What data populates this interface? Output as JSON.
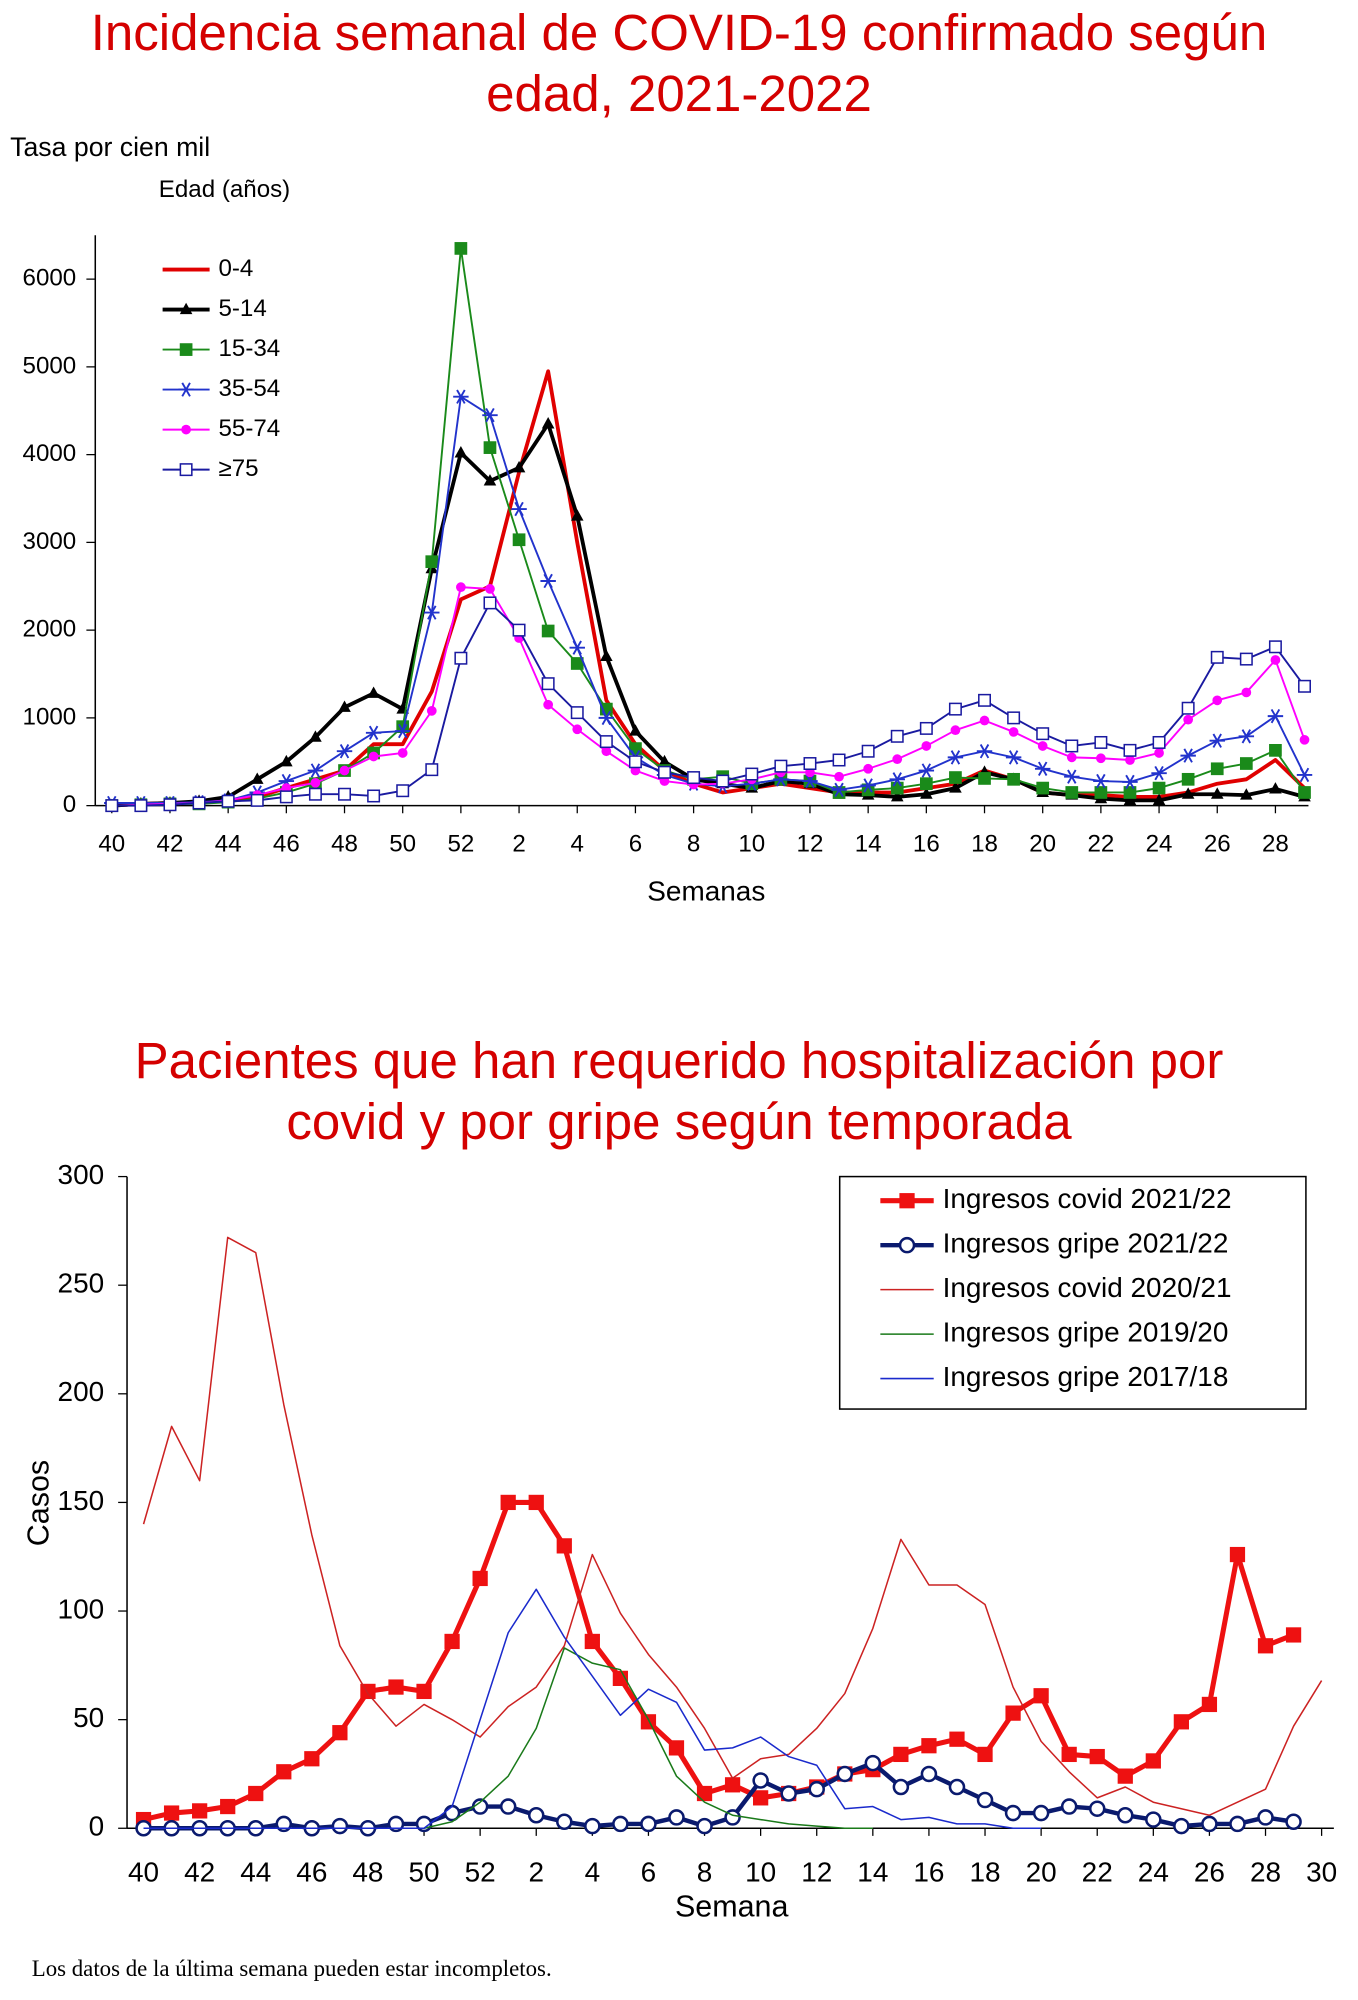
{
  "chart_data": [
    {
      "type": "line",
      "title": "Incidencia semanal de COVID-19 confirmado según edad, 2021-2022",
      "ylabel": "Tasa por cien mil",
      "xlabel": "Semanas",
      "legend_title": "Edad (años)",
      "legend": "upper left",
      "legend_frame": false,
      "categories": [
        "40",
        null,
        "42",
        null,
        "44",
        null,
        "46",
        null,
        "48",
        null,
        "50",
        null,
        "52",
        null,
        "2",
        null,
        "4",
        null,
        "6",
        null,
        "8",
        null,
        "10",
        null,
        "12",
        null,
        "14",
        null,
        "16",
        null,
        "18",
        null,
        "20",
        null,
        "22",
        null,
        "24",
        null,
        "26",
        null,
        "28",
        null
      ],
      "ylim": [
        0,
        6500
      ],
      "yticks": [
        0,
        1000,
        2000,
        3000,
        4000,
        5000,
        6000
      ],
      "series": [
        {
          "name": "0-4",
          "color": "#e00000",
          "marker": "none",
          "line_width": 3,
          "values": [
            0,
            20,
            30,
            40,
            60,
            100,
            200,
            300,
            400,
            700,
            700,
            1300,
            2350,
            2500,
            3800,
            4950,
            3000,
            1200,
            700,
            400,
            250,
            150,
            200,
            250,
            200,
            150,
            150,
            150,
            200,
            250,
            400,
            300,
            150,
            120,
            120,
            100,
            100,
            150,
            250,
            300,
            520,
            200
          ]
        },
        {
          "name": "5-14",
          "color": "#000000",
          "marker": "triangle",
          "line_width": 3,
          "values": [
            0,
            20,
            30,
            50,
            100,
            300,
            500,
            780,
            1120,
            1280,
            1100,
            2700,
            4020,
            3700,
            3850,
            4350,
            3300,
            1700,
            850,
            500,
            300,
            250,
            200,
            280,
            250,
            130,
            120,
            100,
            130,
            200,
            380,
            300,
            150,
            120,
            80,
            60,
            60,
            130,
            130,
            120,
            190,
            100
          ]
        },
        {
          "name": "15-34",
          "color": "#1a8a1a",
          "marker": "square",
          "line_width": 1.5,
          "values": [
            0,
            10,
            20,
            20,
            40,
            80,
            150,
            250,
            400,
            600,
            900,
            2780,
            6350,
            4080,
            3030,
            1990,
            1620,
            1100,
            650,
            400,
            300,
            330,
            250,
            300,
            280,
            150,
            180,
            200,
            250,
            320,
            310,
            300,
            200,
            150,
            150,
            150,
            200,
            300,
            420,
            480,
            630,
            150
          ]
        },
        {
          "name": "35-54",
          "color": "#2233cc",
          "marker": "star",
          "line_width": 1.5,
          "values": [
            30,
            30,
            30,
            40,
            60,
            150,
            280,
            400,
            620,
            830,
            850,
            2200,
            4660,
            4450,
            3380,
            2560,
            1800,
            1000,
            550,
            350,
            250,
            220,
            250,
            300,
            280,
            180,
            230,
            300,
            400,
            550,
            620,
            550,
            420,
            330,
            280,
            270,
            370,
            570,
            740,
            790,
            1020,
            350
          ]
        },
        {
          "name": "55-74",
          "color": "#ff00ff",
          "marker": "circle",
          "line_width": 1.5,
          "values": [
            0,
            10,
            20,
            30,
            60,
            120,
            200,
            260,
            400,
            560,
            600,
            1080,
            2490,
            2470,
            1910,
            1150,
            870,
            620,
            400,
            280,
            240,
            250,
            300,
            380,
            380,
            330,
            420,
            530,
            680,
            860,
            970,
            840,
            680,
            550,
            540,
            520,
            600,
            980,
            1200,
            1290,
            1660,
            750
          ]
        },
        {
          "name": "≥75",
          "color": "#1a1aa0",
          "marker": "open-square",
          "line_width": 1.5,
          "values": [
            0,
            0,
            10,
            30,
            50,
            60,
            100,
            130,
            130,
            110,
            170,
            410,
            1680,
            2310,
            2000,
            1390,
            1060,
            730,
            500,
            380,
            320,
            280,
            360,
            450,
            480,
            520,
            620,
            790,
            880,
            1100,
            1200,
            1000,
            820,
            680,
            720,
            630,
            720,
            1110,
            1690,
            1670,
            1810,
            1360
          ]
        }
      ]
    },
    {
      "type": "line",
      "title": "Pacientes que han requerido hospitalización por covid y por gripe según temporada",
      "ylabel": "Casos",
      "xlabel": "Semana",
      "legend": "upper right",
      "legend_frame": true,
      "categories": [
        "40",
        null,
        "42",
        null,
        "44",
        null,
        "46",
        null,
        "48",
        null,
        "50",
        null,
        "52",
        null,
        "2",
        null,
        "4",
        null,
        "6",
        null,
        "8",
        null,
        "10",
        null,
        "12",
        null,
        "14",
        null,
        "16",
        null,
        "18",
        null,
        "20",
        null,
        "22",
        null,
        "24",
        null,
        "26",
        null,
        "28",
        null,
        "30"
      ],
      "ylim": [
        0,
        300
      ],
      "yticks": [
        0,
        50,
        100,
        150,
        200,
        250,
        300
      ],
      "series": [
        {
          "name": "Ingresos covid 2021/22",
          "color": "#ee1111",
          "marker": "square",
          "line_width": 4,
          "values": [
            4,
            7,
            8,
            10,
            16,
            26,
            32,
            44,
            63,
            65,
            63,
            86,
            115,
            150,
            150,
            130,
            86,
            69,
            49,
            37,
            16,
            20,
            14,
            16,
            19,
            25,
            27,
            34,
            38,
            41,
            34,
            53,
            61,
            34,
            33,
            24,
            31,
            49,
            57,
            126,
            84,
            89,
            null
          ]
        },
        {
          "name": "Ingresos gripe 2021/22",
          "color": "#0a1a6e",
          "marker": "open-circle",
          "line_width": 3.5,
          "values": [
            0,
            0,
            0,
            0,
            0,
            2,
            0,
            1,
            0,
            2,
            2,
            7,
            10,
            10,
            6,
            3,
            1,
            2,
            2,
            5,
            1,
            5,
            22,
            16,
            18,
            25,
            30,
            19,
            25,
            19,
            13,
            7,
            7,
            10,
            9,
            6,
            4,
            1,
            2,
            2,
            5,
            3,
            null
          ]
        },
        {
          "name": "Ingresos covid 2020/21",
          "color": "#cc2222",
          "marker": "none",
          "line_width": 1.2,
          "values": [
            140,
            185,
            160,
            272,
            265,
            195,
            135,
            84,
            62,
            47,
            57,
            50,
            42,
            56,
            65,
            84,
            126,
            99,
            80,
            65,
            46,
            23,
            32,
            34,
            46,
            62,
            92,
            133,
            112,
            112,
            103,
            65,
            40,
            26,
            14,
            19,
            12,
            9,
            6,
            12,
            18,
            47,
            68
          ]
        },
        {
          "name": "Ingresos gripe 2019/20",
          "color": "#1a7a1a",
          "marker": "none",
          "line_width": 1.2,
          "values": [
            0,
            0,
            0,
            0,
            0,
            0,
            0,
            0,
            0,
            0,
            0,
            3,
            12,
            24,
            46,
            83,
            76,
            73,
            50,
            24,
            12,
            6,
            4,
            2,
            1,
            0,
            0,
            null,
            null,
            null,
            null,
            null,
            null,
            null,
            null,
            null,
            null,
            null,
            null,
            null,
            null,
            null,
            null
          ]
        },
        {
          "name": "Ingresos gripe 2017/18",
          "color": "#1a2acc",
          "marker": "none",
          "line_width": 1.2,
          "values": [
            0,
            0,
            0,
            0,
            0,
            0,
            0,
            0,
            0,
            0,
            0,
            10,
            50,
            90,
            110,
            88,
            70,
            52,
            64,
            58,
            36,
            37,
            42,
            33,
            29,
            9,
            10,
            4,
            5,
            2,
            2,
            0,
            0,
            null,
            null,
            null,
            null,
            null,
            null,
            null,
            null,
            null,
            null
          ]
        }
      ]
    }
  ],
  "footnote": "Los datos de la última semana pueden estar incompletos."
}
